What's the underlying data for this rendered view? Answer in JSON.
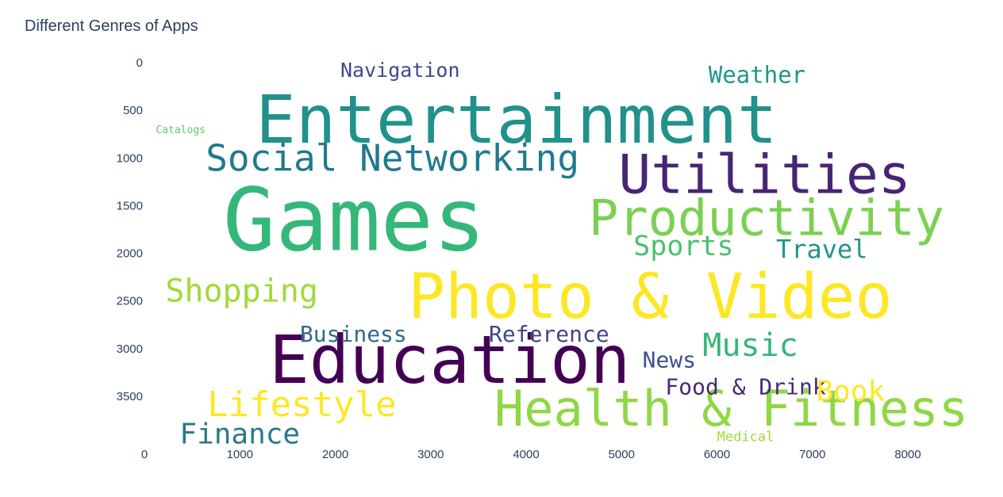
{
  "chart_data": {
    "type": "wordcloud",
    "title": "Different Genres of Apps",
    "xlim": [
      0,
      8000
    ],
    "ylim": [
      0,
      4000
    ],
    "y_reversed": true,
    "x_ticks": [
      "0",
      "1000",
      "2000",
      "3000",
      "4000",
      "5000",
      "6000",
      "7000",
      "8000"
    ],
    "y_ticks": [
      "0",
      "500",
      "1000",
      "1500",
      "2000",
      "2500",
      "3000",
      "3500"
    ],
    "words": [
      {
        "text": "Games",
        "x": 2200,
        "y": 1650,
        "color": "#35b779",
        "weight": 110
      },
      {
        "text": "Entertainment",
        "x": 3900,
        "y": 600,
        "color": "#21918c",
        "weight": 84
      },
      {
        "text": "Photo & Video",
        "x": 5300,
        "y": 2460,
        "color": "#fde725",
        "weight": 78
      },
      {
        "text": "Education",
        "x": 3200,
        "y": 3120,
        "color": "#440154",
        "weight": 84
      },
      {
        "text": "Utilities",
        "x": 6500,
        "y": 1180,
        "color": "#482475",
        "weight": 68
      },
      {
        "text": "Productivity",
        "x": 6520,
        "y": 1630,
        "color": "#7ad151",
        "weight": 62
      },
      {
        "text": "Health & Fitness",
        "x": 6150,
        "y": 3630,
        "color": "#8fd744",
        "weight": 62
      },
      {
        "text": "Social Networking",
        "x": 2600,
        "y": 1000,
        "color": "#1f7a8c",
        "weight": 46
      },
      {
        "text": "Lifestyle",
        "x": 1650,
        "y": 3590,
        "color": "#fde725",
        "weight": 44
      },
      {
        "text": "Shopping",
        "x": 1020,
        "y": 2400,
        "color": "#a0da39",
        "weight": 40
      },
      {
        "text": "Finance",
        "x": 1000,
        "y": 3900,
        "color": "#2a788e",
        "weight": 36
      },
      {
        "text": "Music",
        "x": 6350,
        "y": 2970,
        "color": "#35b779",
        "weight": 40
      },
      {
        "text": "Sports",
        "x": 5650,
        "y": 1930,
        "color": "#4ac16d",
        "weight": 35
      },
      {
        "text": "Travel",
        "x": 7100,
        "y": 1960,
        "color": "#1f968b",
        "weight": 32
      },
      {
        "text": "Weather",
        "x": 6420,
        "y": 130,
        "color": "#1f968b",
        "weight": 29
      },
      {
        "text": "Navigation",
        "x": 2680,
        "y": 80,
        "color": "#3e4a89",
        "weight": 25
      },
      {
        "text": "Business",
        "x": 2190,
        "y": 2850,
        "color": "#31688e",
        "weight": 28
      },
      {
        "text": "Reference",
        "x": 4240,
        "y": 2850,
        "color": "#404688",
        "weight": 28
      },
      {
        "text": "News",
        "x": 5500,
        "y": 3120,
        "color": "#3b528b",
        "weight": 28
      },
      {
        "text": "Food & Drink",
        "x": 6300,
        "y": 3400,
        "color": "#482878",
        "weight": 28
      },
      {
        "text": "Book",
        "x": 7400,
        "y": 3450,
        "color": "#fde725",
        "weight": 36
      },
      {
        "text": "Medical",
        "x": 6300,
        "y": 3930,
        "color": "#a0da39",
        "weight": 17
      },
      {
        "text": "Catalogs",
        "x": 380,
        "y": 710,
        "color": "#5ec962",
        "weight": 13
      }
    ]
  }
}
